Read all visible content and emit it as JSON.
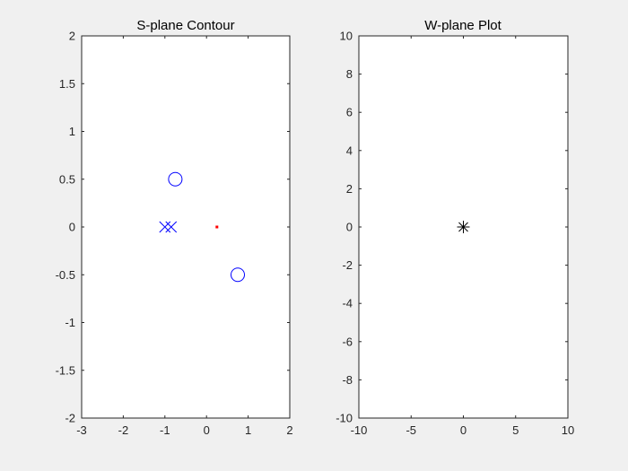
{
  "figure": {
    "background": "#f0f0f0"
  },
  "chart_data": [
    {
      "type": "scatter",
      "title": "S-plane Contour",
      "xlabel": "",
      "ylabel": "",
      "xlim": [
        -3,
        2
      ],
      "ylim": [
        -2,
        2
      ],
      "xticks": [
        "-3",
        "-2",
        "-1",
        "0",
        "1",
        "2"
      ],
      "yticks": [
        "2",
        "1.5",
        "1",
        "0.5",
        "0",
        "-0.5",
        "-1",
        "-1.5",
        "-2"
      ],
      "grid": false,
      "series": [
        {
          "marker": "circle",
          "color": "#0000ff",
          "points": [
            [
              -0.75,
              0.5
            ],
            [
              0.75,
              -0.5
            ]
          ]
        },
        {
          "marker": "x",
          "color": "#0000ff",
          "points": [
            [
              -1.0,
              0
            ],
            [
              -0.85,
              0
            ]
          ]
        },
        {
          "marker": "dot",
          "color": "#ff0000",
          "points": [
            [
              0.25,
              0
            ]
          ]
        }
      ]
    },
    {
      "type": "scatter",
      "title": "W-plane Plot",
      "xlabel": "",
      "ylabel": "",
      "xlim": [
        -10,
        10
      ],
      "ylim": [
        -10,
        10
      ],
      "xticks": [
        "-10",
        "-5",
        "0",
        "5",
        "10"
      ],
      "yticks": [
        "10",
        "8",
        "6",
        "4",
        "2",
        "0",
        "-2",
        "-4",
        "-6",
        "-8",
        "-10"
      ],
      "grid": false,
      "series": [
        {
          "marker": "asterisk",
          "color": "#000000",
          "points": [
            [
              0,
              0
            ]
          ]
        }
      ]
    }
  ]
}
